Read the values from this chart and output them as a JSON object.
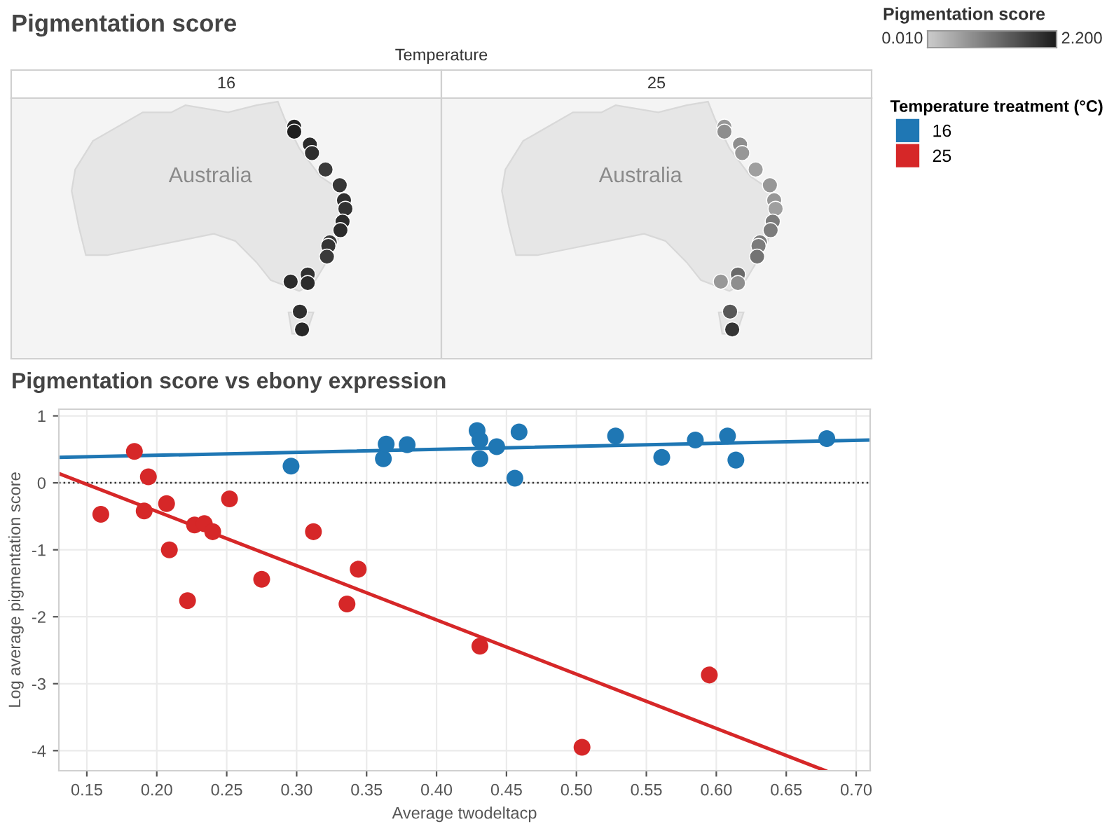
{
  "chart_data": [
    {
      "type": "other",
      "title": "Pigmentation score",
      "subtitle": "Temperature",
      "categories": [
        "16",
        "25"
      ],
      "annotations": [
        "Australia",
        "Australia",
        "0.010",
        "2.200"
      ],
      "clabel": "Pigmentation score"
    },
    {
      "type": "scatter",
      "title": "Pigmentation score vs ebony expression",
      "xlabel": "Average twodeltacp",
      "ylabel": "Log average pigmentation score",
      "xlim": [
        0.13,
        0.71
      ],
      "ylim": [
        -4.3,
        1.1
      ],
      "xticks": [
        {
          "value": 0.15,
          "label": "0.15"
        },
        {
          "value": 0.2,
          "label": "0.20"
        },
        {
          "value": 0.25,
          "label": "0.25"
        },
        {
          "value": 0.3,
          "label": "0.30"
        },
        {
          "value": 0.35,
          "label": "0.35"
        },
        {
          "value": 0.4,
          "label": "0.40"
        },
        {
          "value": 0.45,
          "label": "0.45"
        },
        {
          "value": 0.5,
          "label": "0.50"
        },
        {
          "value": 0.55,
          "label": "0.55"
        },
        {
          "value": 0.6,
          "label": "0.60"
        },
        {
          "value": 0.65,
          "label": "0.65"
        },
        {
          "value": 0.7,
          "label": "0.70"
        }
      ],
      "yticks": [
        -4,
        -3,
        -2,
        -1,
        0,
        1
      ],
      "grid": true,
      "legend": "right",
      "legend_title": "Temperature treatment (°C)",
      "ref_lines": [
        {
          "axis": "y",
          "value": 0,
          "color": "#333333",
          "line_style": "dotted"
        }
      ],
      "series": [
        {
          "name": "16",
          "color": "#1f77b4",
          "marker": "circle",
          "x": [
            0.296,
            0.362,
            0.364,
            0.379,
            0.429,
            0.431,
            0.431,
            0.443,
            0.456,
            0.459,
            0.528,
            0.561,
            0.585,
            0.608,
            0.614,
            0.679
          ],
          "values": [
            0.25,
            0.36,
            0.58,
            0.57,
            0.78,
            0.64,
            0.36,
            0.54,
            0.07,
            0.76,
            0.7,
            0.38,
            0.64,
            0.7,
            0.34,
            0.66
          ]
        },
        {
          "name": "25",
          "color": "#d62728",
          "marker": "circle",
          "x": [
            0.16,
            0.184,
            0.191,
            0.194,
            0.207,
            0.209,
            0.222,
            0.227,
            0.234,
            0.24,
            0.252,
            0.275,
            0.312,
            0.336,
            0.344,
            0.431,
            0.504,
            0.595
          ],
          "values": [
            -0.47,
            0.47,
            -0.42,
            0.09,
            -0.31,
            -1.0,
            -1.76,
            -0.63,
            -0.61,
            -0.73,
            -0.24,
            -1.44,
            -0.73,
            -1.81,
            -1.29,
            -2.44,
            -3.95,
            -2.87
          ]
        },
        {
          "type": "line",
          "color": "#1f77b4",
          "x": [
            0.13,
            0.71
          ],
          "values": [
            0.38,
            0.64
          ]
        },
        {
          "type": "line",
          "color": "#d62728",
          "x": [
            0.13,
            0.678
          ],
          "values": [
            0.14,
            -4.3
          ]
        }
      ]
    }
  ]
}
